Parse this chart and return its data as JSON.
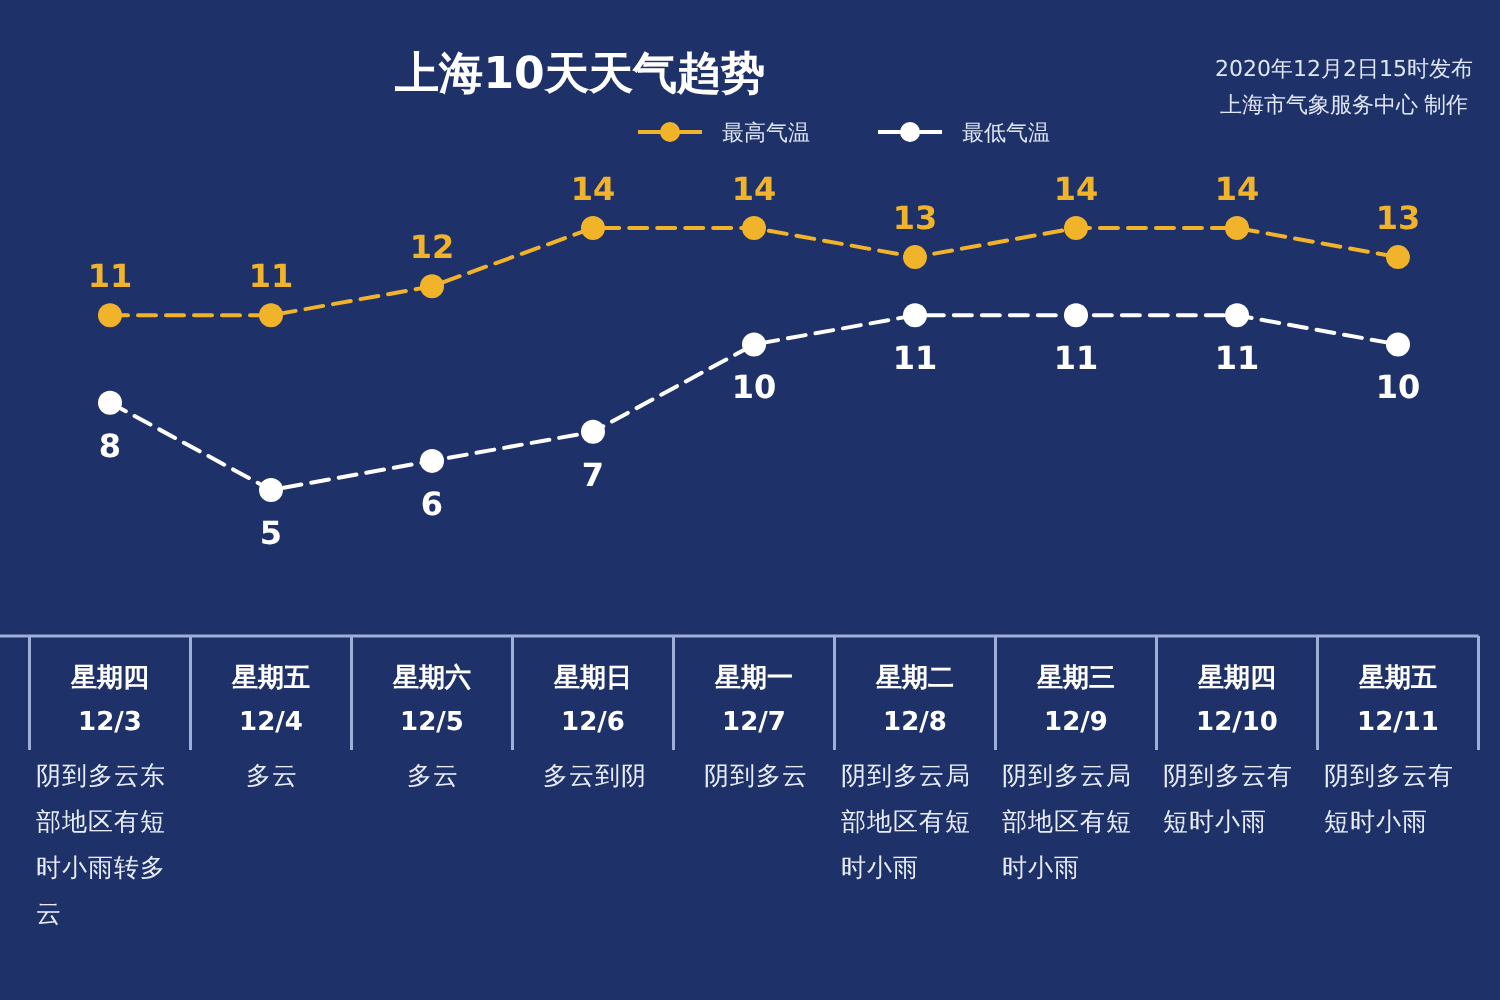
{
  "chart_data": {
    "type": "line",
    "title": "上海10天天气趋势",
    "categories": [
      "星期四 12/3",
      "星期五 12/4",
      "星期六 12/5",
      "星期日 12/6",
      "星期一 12/7",
      "星期二 12/8",
      "星期三 12/9",
      "星期四 12/10",
      "星期五 12/11"
    ],
    "series": [
      {
        "name": "最高气温",
        "color": "#f0b32a",
        "values": [
          11,
          11,
          12,
          14,
          14,
          13,
          14,
          14,
          13
        ]
      },
      {
        "name": "最低气温",
        "color": "#ffffff",
        "values": [
          8,
          5,
          6,
          7,
          10,
          11,
          11,
          11,
          10
        ]
      }
    ],
    "annotations": [
      "2020年12月2日15时发布",
      "上海市气象服务中心 制作",
      "阴到多云东部地区有短时小雨转多云",
      "多云",
      "多云",
      "多云到阴",
      "阴到多云",
      "阴到多云局部地区有短时小雨",
      "阴到多云局部地区有短时小雨",
      "阴到多云有短时小雨",
      "阴到多云有短时小雨"
    ],
    "data_labels": true,
    "legend": "top",
    "marker": "circle",
    "line_style": "dashed"
  }
}
